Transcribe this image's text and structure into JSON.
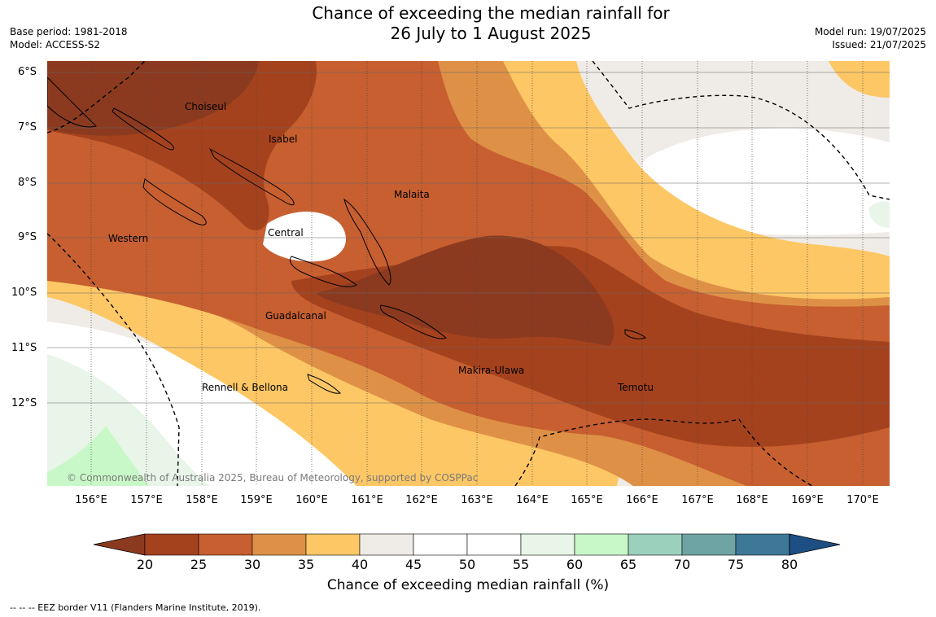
{
  "title": {
    "line1": "Chance of exceeding the median rainfall for",
    "line2": "26 July to 1 August 2025"
  },
  "meta_left": {
    "base_period": "Base period: 1981-2018",
    "model": "Model: ACCESS-S2"
  },
  "meta_right": {
    "model_run": "Model run: 19/07/2025",
    "issued": "Issued: 21/07/2025"
  },
  "latitude_labels": [
    "6°S",
    "7°S",
    "8°S",
    "9°S",
    "10°S",
    "11°S",
    "12°S"
  ],
  "longitude_labels": [
    "156°E",
    "157°E",
    "158°E",
    "159°E",
    "160°E",
    "161°E",
    "162°E",
    "163°E",
    "164°E",
    "165°E",
    "166°E",
    "167°E",
    "168°E",
    "169°E",
    "170°E"
  ],
  "regions": {
    "choiseul": "Choiseul",
    "isabel": "Isabel",
    "malaita": "Malaita",
    "central": "Central",
    "western": "Western",
    "guadalcanal": "Guadalcanal",
    "makira_ulawa": "Makira-Ulawa",
    "rennell_bellona": "Rennell & Bellona",
    "temotu": "Temotu"
  },
  "copyright": "© Commonwealth of Australia 2025, Bureau of Meteorology, supported by COSPPac",
  "colorbar": {
    "ticks": [
      "20",
      "25",
      "30",
      "35",
      "40",
      "45",
      "50",
      "55",
      "60",
      "65",
      "70",
      "75",
      "80"
    ],
    "colors": [
      "#8b3a1f",
      "#a5421e",
      "#c75f30",
      "#de9146",
      "#fdc765",
      "#efebe6",
      "#ffffff",
      "#ffffff",
      "#e8f5e8",
      "#c8f8c8",
      "#9bd0bc",
      "#6fa4a4",
      "#3e7898",
      "#1d4f84"
    ],
    "label": "Chance of exceeding median rainfall (%)"
  },
  "eez_note": "-- -- -- EEZ border V11 (Flanders Marine Institute, 2019)."
}
